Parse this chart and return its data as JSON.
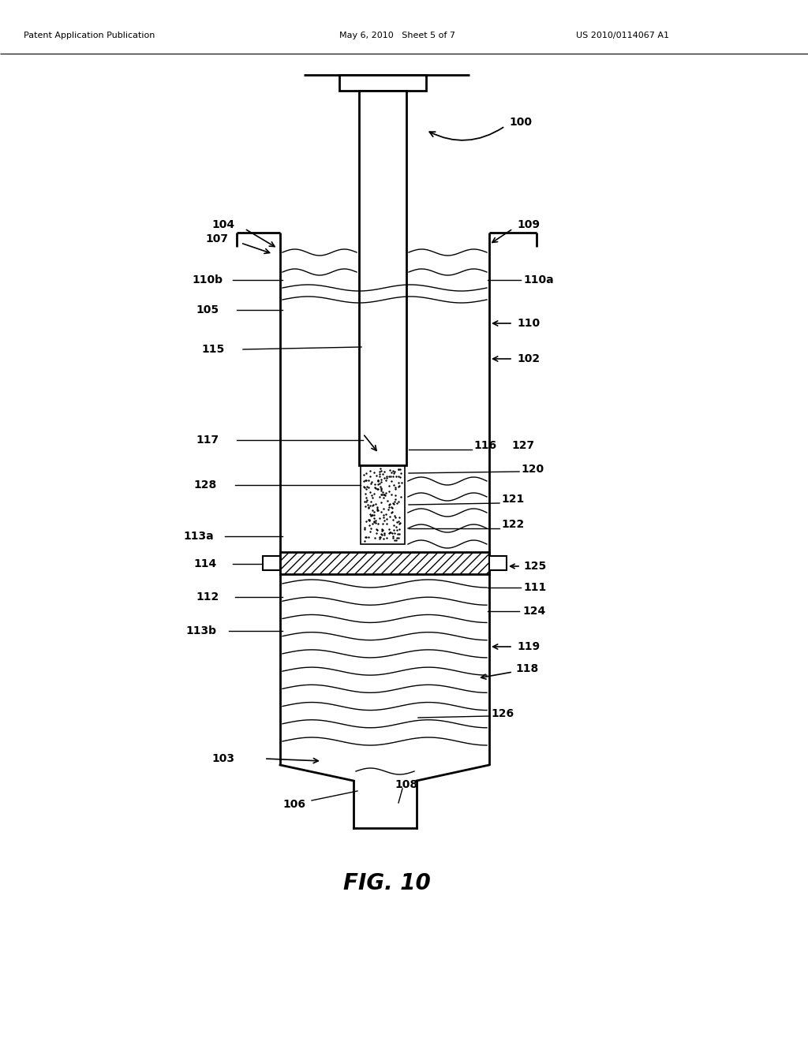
{
  "header_left": "Patent Application Publication",
  "header_mid": "May 6, 2010   Sheet 5 of 7",
  "header_right": "US 2010/0114067 A1",
  "figure_label": "FIG. 10",
  "bg_color": "#ffffff",
  "line_color": "#000000",
  "lw_main": 2.0,
  "lw_thin": 1.0,
  "label_fs": 10
}
